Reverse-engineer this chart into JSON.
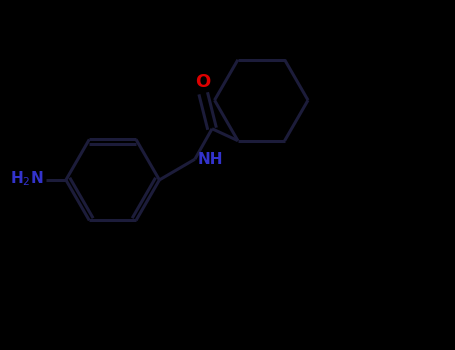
{
  "background_color": "#000000",
  "bond_color": "#1a1a2e",
  "atom_N_color": "#3333cc",
  "atom_O_color": "#dd0000",
  "linewidth": 2.2,
  "font_size_atom": 11,
  "bond_color_dark": "#111122"
}
